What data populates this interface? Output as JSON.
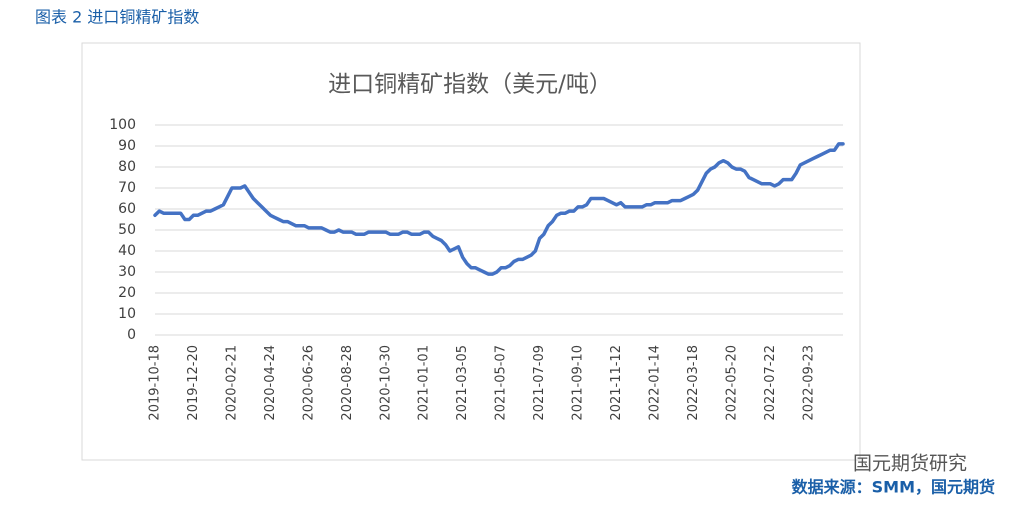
{
  "figure_label": "图表 2 进口铜精矿指数",
  "source": "数据来源：SMM，国元期货",
  "watermark": "国元期货研究",
  "chart_data": {
    "type": "line",
    "title": "进口铜精矿指数（美元/吨）",
    "categories": [
      "2019-10-18",
      null,
      null,
      null,
      null,
      null,
      null,
      null,
      null,
      "2019-12-20",
      null,
      null,
      null,
      null,
      null,
      null,
      null,
      null,
      "2020-02-21",
      null,
      null,
      null,
      null,
      null,
      null,
      null,
      null,
      "2020-04-24",
      null,
      null,
      null,
      null,
      null,
      null,
      null,
      null,
      "2020-06-26",
      null,
      null,
      null,
      null,
      null,
      null,
      null,
      null,
      "2020-08-28",
      null,
      null,
      null,
      null,
      null,
      null,
      null,
      null,
      "2020-10-30",
      null,
      null,
      null,
      null,
      null,
      null,
      null,
      null,
      "2021-01-01",
      null,
      null,
      null,
      null,
      null,
      null,
      null,
      null,
      "2021-03-05",
      null,
      null,
      null,
      null,
      null,
      null,
      null,
      null,
      "2021-05-07",
      null,
      null,
      null,
      null,
      null,
      null,
      null,
      null,
      "2021-07-09",
      null,
      null,
      null,
      null,
      null,
      null,
      null,
      null,
      "2021-09-10",
      null,
      null,
      null,
      null,
      null,
      null,
      null,
      null,
      "2021-11-12",
      null,
      null,
      null,
      null,
      null,
      null,
      null,
      null,
      "2022-01-14",
      null,
      null,
      null,
      null,
      null,
      null,
      null,
      null,
      "2022-03-18",
      null,
      null,
      null,
      null,
      null,
      null,
      null,
      null,
      "2022-05-20",
      null,
      null,
      null,
      null,
      null,
      null,
      null,
      null,
      "2022-07-22",
      null,
      null,
      null,
      null,
      null,
      null,
      null,
      null,
      "2022-09-23",
      null,
      null,
      null,
      null,
      null,
      null,
      null,
      null
    ],
    "values": [
      57,
      59,
      58,
      58,
      58,
      58,
      58,
      55,
      55,
      57,
      57,
      58,
      59,
      59,
      60,
      61,
      62,
      66,
      70,
      70,
      70,
      71,
      68,
      65,
      63,
      61,
      59,
      57,
      56,
      55,
      54,
      54,
      53,
      52,
      52,
      52,
      51,
      51,
      51,
      51,
      50,
      49,
      49,
      50,
      49,
      49,
      49,
      48,
      48,
      48,
      49,
      49,
      49,
      49,
      49,
      48,
      48,
      48,
      49,
      49,
      48,
      48,
      48,
      49,
      49,
      47,
      46,
      45,
      43,
      40,
      41,
      42,
      37,
      34,
      32,
      32,
      31,
      30,
      29,
      29,
      30,
      32,
      32,
      33,
      35,
      36,
      36,
      37,
      38,
      40,
      46,
      48,
      52,
      54,
      57,
      58,
      58,
      59,
      59,
      61,
      61,
      62,
      65,
      65,
      65,
      65,
      64,
      63,
      62,
      63,
      61,
      61,
      61,
      61,
      61,
      62,
      62,
      63,
      63,
      63,
      63,
      64,
      64,
      64,
      65,
      66,
      67,
      69,
      73,
      77,
      79,
      80,
      82,
      83,
      82,
      80,
      79,
      79,
      78,
      75,
      74,
      73,
      72,
      72,
      72,
      71,
      72,
      74,
      74,
      74,
      77,
      81,
      82,
      83,
      84,
      85,
      86,
      87,
      88,
      88,
      91,
      91
    ],
    "color": "#4472c4",
    "ylim": [
      0,
      100
    ],
    "yticks": [
      0,
      10,
      20,
      30,
      40,
      50,
      60,
      70,
      80,
      90,
      100
    ],
    "grid": true
  }
}
